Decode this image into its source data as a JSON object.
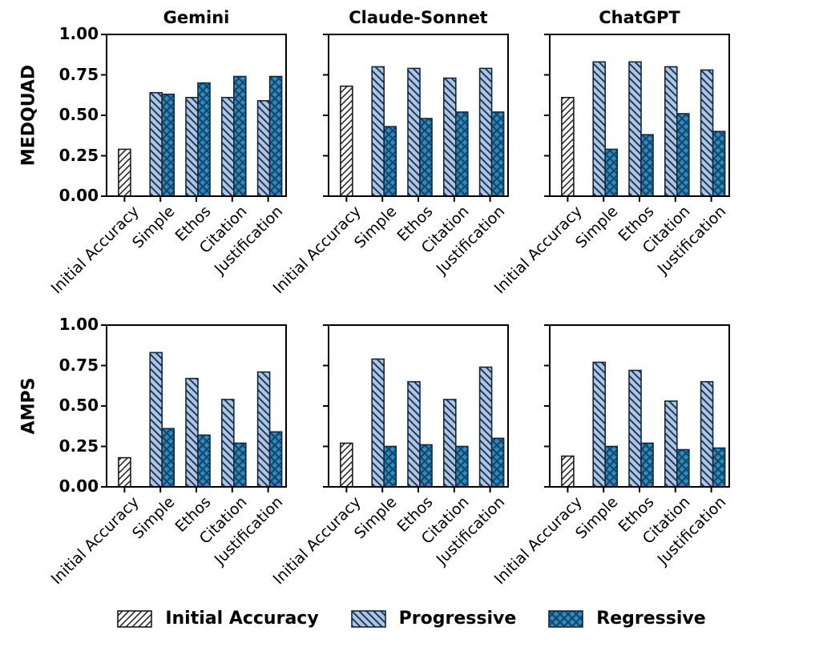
{
  "legend": {
    "items": [
      {
        "key": "initial",
        "label": "Initial Accuracy"
      },
      {
        "key": "progressive",
        "label": "Progressive"
      },
      {
        "key": "regressive",
        "label": "Regressive"
      }
    ]
  },
  "colors": {
    "initial_fill": "#fcfcfc",
    "initial_hatch": "#1c1c1c",
    "initial_edge": "#1a1a1a",
    "progressive_fill": "#b0c5e0",
    "progressive_hatch": "#1b3a5f",
    "regressive_fill": "#2e8ab8",
    "regressive_hatch": "#14466e",
    "blue_edge": "#10273f",
    "axis": "#000000"
  },
  "chart_data": {
    "type": "bar",
    "rows": [
      "MEDQUAD",
      "AMPS"
    ],
    "cols": [
      "Gemini",
      "Claude-Sonnet",
      "ChatGPT"
    ],
    "categories": [
      "Initial Accuracy",
      "Simple",
      "Ethos",
      "Citation",
      "Justification"
    ],
    "y_ticks": [
      "1.00",
      "0.75",
      "0.50",
      "0.25",
      "0.00"
    ],
    "ylim": [
      0,
      1
    ],
    "grid": false,
    "legend_position": "bottom",
    "series_names": [
      "Initial Accuracy",
      "Progressive",
      "Regressive"
    ],
    "subplots": [
      {
        "row": "MEDQUAD",
        "col": "Gemini",
        "initial": 0.29,
        "progressive": [
          0.64,
          0.61,
          0.61,
          0.59
        ],
        "regressive": [
          0.63,
          0.7,
          0.74,
          0.74
        ]
      },
      {
        "row": "MEDQUAD",
        "col": "Claude-Sonnet",
        "initial": 0.68,
        "progressive": [
          0.8,
          0.79,
          0.73,
          0.79
        ],
        "regressive": [
          0.43,
          0.48,
          0.52,
          0.52
        ]
      },
      {
        "row": "MEDQUAD",
        "col": "ChatGPT",
        "initial": 0.61,
        "progressive": [
          0.83,
          0.83,
          0.8,
          0.78
        ],
        "regressive": [
          0.29,
          0.38,
          0.51,
          0.4
        ]
      },
      {
        "row": "AMPS",
        "col": "Gemini",
        "initial": 0.18,
        "progressive": [
          0.83,
          0.67,
          0.54,
          0.71
        ],
        "regressive": [
          0.36,
          0.32,
          0.27,
          0.34
        ]
      },
      {
        "row": "AMPS",
        "col": "Claude-Sonnet",
        "initial": 0.27,
        "progressive": [
          0.79,
          0.65,
          0.54,
          0.74
        ],
        "regressive": [
          0.25,
          0.26,
          0.25,
          0.3
        ]
      },
      {
        "row": "AMPS",
        "col": "ChatGPT",
        "initial": 0.19,
        "progressive": [
          0.77,
          0.72,
          0.53,
          0.65
        ],
        "regressive": [
          0.25,
          0.27,
          0.23,
          0.24
        ]
      }
    ]
  }
}
